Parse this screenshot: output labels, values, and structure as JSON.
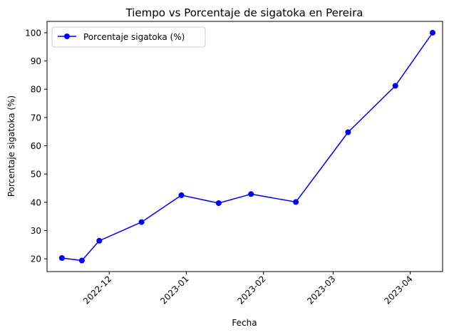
{
  "chart_data": {
    "type": "line",
    "title": "Tiempo vs Porcentaje de sigatoka en Pereira",
    "xlabel": "Fecha",
    "ylabel": "Porcentaje sigatoka (%)",
    "ylim": [
      15.5,
      104
    ],
    "xlim": [
      "2022-11-06",
      "2023-04-14"
    ],
    "yticks": [
      20,
      30,
      40,
      50,
      60,
      70,
      80,
      90,
      100
    ],
    "xticks": [
      "2022-12-01",
      "2023-01-01",
      "2023-02-01",
      "2023-03-01",
      "2023-04-01"
    ],
    "xtick_labels": [
      "2022-12",
      "2023-01",
      "2023-02",
      "2023-03",
      "2023-04"
    ],
    "legend": {
      "placement": "top-left"
    },
    "grid": false,
    "series": [
      {
        "name": "Porcentaje sigatoka (%)",
        "color": "#0000ff",
        "marker": "circle",
        "x": [
          "2022-11-12",
          "2022-11-20",
          "2022-11-27",
          "2022-12-14",
          "2022-12-30",
          "2023-01-14",
          "2023-01-27",
          "2023-02-14",
          "2023-03-07",
          "2023-03-26",
          "2023-04-10"
        ],
        "y": [
          20.3,
          19.4,
          26.4,
          33.0,
          42.5,
          39.7,
          42.9,
          40.1,
          64.8,
          81.2,
          100.0
        ]
      }
    ]
  }
}
